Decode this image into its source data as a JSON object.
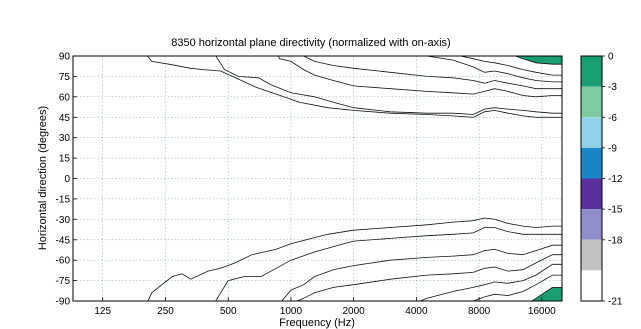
{
  "chart_data": {
    "type": "heatmap",
    "subtype": "filled-contour",
    "title": "8350 horizontal plane directivity (normalized with on-axis)",
    "xlabel": "Frequency (Hz)",
    "ylabel": "Horizontal direction (degrees)",
    "x_scale": "log",
    "xlim": [
      90,
      20000
    ],
    "ylim": [
      -90,
      90
    ],
    "x_ticks": [
      {
        "value": 125,
        "label": "125"
      },
      {
        "value": 250,
        "label": "250"
      },
      {
        "value": 500,
        "label": "500"
      },
      {
        "value": 1000,
        "label": "1000"
      },
      {
        "value": 2000,
        "label": "2000"
      },
      {
        "value": 4000,
        "label": "4000"
      },
      {
        "value": 8000,
        "label": "8000"
      },
      {
        "value": 16000,
        "label": "16000"
      }
    ],
    "y_ticks": [
      {
        "value": 90,
        "label": "90"
      },
      {
        "value": 75,
        "label": "75"
      },
      {
        "value": 60,
        "label": "60"
      },
      {
        "value": 45,
        "label": "45"
      },
      {
        "value": 30,
        "label": "30"
      },
      {
        "value": 15,
        "label": "15"
      },
      {
        "value": 0,
        "label": "0"
      },
      {
        "value": -15,
        "label": "-15"
      },
      {
        "value": -30,
        "label": "-30"
      },
      {
        "value": -45,
        "label": "-45"
      },
      {
        "value": -60,
        "label": "-60"
      },
      {
        "value": -75,
        "label": "-75"
      },
      {
        "value": -90,
        "label": "-90"
      }
    ],
    "grid": true,
    "colorbar": {
      "placement": "right",
      "levels": [
        {
          "label": "0",
          "value": 0
        },
        {
          "label": "-3",
          "value": -3
        },
        {
          "label": "-6",
          "value": -6
        },
        {
          "label": "-9",
          "value": -9
        },
        {
          "label": "-12",
          "value": -12
        },
        {
          "label": "-15",
          "value": -15
        },
        {
          "label": "-18",
          "value": -18
        },
        {
          "label": "-21",
          "value": -21
        }
      ],
      "bands": [
        {
          "range": [
            -3,
            0
          ],
          "color": "#1a9e74"
        },
        {
          "range": [
            -6,
            -3
          ],
          "color": "#7dcba0"
        },
        {
          "range": [
            -9,
            -6
          ],
          "color": "#8fd2ea"
        },
        {
          "range": [
            -12,
            -9
          ],
          "color": "#1a86c8"
        },
        {
          "range": [
            -15,
            -12
          ],
          "color": "#5a2f9e"
        },
        {
          "range": [
            -18,
            -15
          ],
          "color": "#8e8ec8"
        },
        {
          "range": [
            -21,
            -18
          ],
          "color": "#c2c2c2"
        },
        {
          "range": [
            -24,
            -21
          ],
          "color": "#ffffff"
        }
      ]
    },
    "contours": [
      {
        "level": -3,
        "upper": [
          [
            90,
            94
          ],
          [
            195,
            94
          ],
          [
            215,
            86
          ],
          [
            260,
            84
          ],
          [
            330,
            81
          ],
          [
            380,
            80
          ],
          [
            460,
            79
          ],
          [
            560,
            73
          ],
          [
            680,
            67
          ],
          [
            850,
            62
          ],
          [
            1100,
            56
          ],
          [
            1500,
            52
          ],
          [
            2000,
            50
          ],
          [
            3000,
            48
          ],
          [
            4500,
            47
          ],
          [
            6000,
            46
          ],
          [
            7500,
            45
          ],
          [
            8500,
            49
          ],
          [
            9500,
            50
          ],
          [
            11000,
            48
          ],
          [
            13000,
            46
          ],
          [
            15000,
            45
          ],
          [
            18000,
            45
          ],
          [
            20000,
            45
          ]
        ],
        "lower": [
          [
            90,
            -94
          ],
          [
            200,
            -94
          ],
          [
            215,
            -84
          ],
          [
            240,
            -78
          ],
          [
            270,
            -72
          ],
          [
            300,
            -70
          ],
          [
            330,
            -74
          ],
          [
            400,
            -68
          ],
          [
            460,
            -66
          ],
          [
            540,
            -62
          ],
          [
            650,
            -56
          ],
          [
            850,
            -52
          ],
          [
            1000,
            -48
          ],
          [
            1500,
            -41
          ],
          [
            2000,
            -38
          ],
          [
            3000,
            -36
          ],
          [
            4500,
            -34
          ],
          [
            6000,
            -32
          ],
          [
            7500,
            -31
          ],
          [
            8500,
            -29
          ],
          [
            9500,
            -30
          ],
          [
            11000,
            -33
          ],
          [
            13000,
            -35
          ],
          [
            15000,
            -36
          ],
          [
            18000,
            -35
          ],
          [
            20000,
            -35
          ]
        ]
      },
      {
        "level": -6,
        "upper": [
          [
            90,
            94
          ],
          [
            420,
            94
          ],
          [
            480,
            80
          ],
          [
            560,
            75
          ],
          [
            700,
            74
          ],
          [
            800,
            69
          ],
          [
            1000,
            63
          ],
          [
            1300,
            60
          ],
          [
            1600,
            56
          ],
          [
            2000,
            52
          ],
          [
            3000,
            49
          ],
          [
            4500,
            48
          ],
          [
            6000,
            48
          ],
          [
            7500,
            47
          ],
          [
            8500,
            51
          ],
          [
            9500,
            52
          ],
          [
            11000,
            51
          ],
          [
            13000,
            50
          ],
          [
            15000,
            49
          ],
          [
            18000,
            48
          ],
          [
            20000,
            48
          ]
        ],
        "lower": [
          [
            90,
            -94
          ],
          [
            420,
            -94
          ],
          [
            500,
            -75
          ],
          [
            600,
            -72
          ],
          [
            720,
            -72
          ],
          [
            850,
            -66
          ],
          [
            1000,
            -60
          ],
          [
            1300,
            -54
          ],
          [
            1600,
            -50
          ],
          [
            2000,
            -46
          ],
          [
            3000,
            -44
          ],
          [
            4500,
            -42
          ],
          [
            6000,
            -41
          ],
          [
            7500,
            -40
          ],
          [
            8500,
            -36
          ],
          [
            9500,
            -36
          ],
          [
            11000,
            -39
          ],
          [
            13000,
            -41
          ],
          [
            15000,
            -41
          ],
          [
            18000,
            -41
          ],
          [
            20000,
            -41
          ]
        ]
      },
      {
        "level": -9,
        "upper": [
          [
            90,
            94
          ],
          [
            860,
            94
          ],
          [
            880,
            88
          ],
          [
            1000,
            86
          ],
          [
            1150,
            80
          ],
          [
            1300,
            76
          ],
          [
            1600,
            72
          ],
          [
            2000,
            68
          ],
          [
            3000,
            66
          ],
          [
            4500,
            64
          ],
          [
            6000,
            63
          ],
          [
            7500,
            62
          ],
          [
            8500,
            64
          ],
          [
            9500,
            66
          ],
          [
            11000,
            64
          ],
          [
            13000,
            61
          ],
          [
            15000,
            60
          ],
          [
            18000,
            61
          ],
          [
            20000,
            61
          ]
        ],
        "lower": [
          [
            90,
            -94
          ],
          [
            860,
            -94
          ],
          [
            1000,
            -82
          ],
          [
            1150,
            -78
          ],
          [
            1300,
            -72
          ],
          [
            1600,
            -67
          ],
          [
            2000,
            -64
          ],
          [
            3000,
            -60
          ],
          [
            4500,
            -58
          ],
          [
            6000,
            -57
          ],
          [
            7500,
            -56
          ],
          [
            8500,
            -53
          ],
          [
            9500,
            -52
          ],
          [
            11000,
            -55
          ],
          [
            13000,
            -56
          ],
          [
            15000,
            -53
          ],
          [
            18000,
            -49
          ],
          [
            20000,
            -49
          ]
        ]
      },
      {
        "level": -12,
        "upper": [
          [
            90,
            94
          ],
          [
            860,
            94
          ],
          [
            1000,
            94
          ],
          [
            1150,
            90
          ],
          [
            1300,
            86
          ],
          [
            1600,
            83
          ],
          [
            2000,
            81
          ],
          [
            3000,
            78
          ],
          [
            4500,
            75
          ],
          [
            6000,
            74
          ],
          [
            7500,
            72
          ],
          [
            8500,
            70
          ],
          [
            9500,
            72
          ],
          [
            11000,
            70
          ],
          [
            13000,
            68
          ],
          [
            15000,
            66
          ],
          [
            18000,
            66
          ],
          [
            20000,
            66
          ]
        ],
        "lower": [
          [
            90,
            -94
          ],
          [
            980,
            -94
          ],
          [
            1000,
            -92
          ],
          [
            1150,
            -88
          ],
          [
            1300,
            -84
          ],
          [
            1600,
            -80
          ],
          [
            2000,
            -78
          ],
          [
            3000,
            -74
          ],
          [
            4500,
            -71
          ],
          [
            6000,
            -70
          ],
          [
            7500,
            -69
          ],
          [
            8500,
            -66
          ],
          [
            9500,
            -65
          ],
          [
            11000,
            -68
          ],
          [
            13000,
            -67
          ],
          [
            15000,
            -62
          ],
          [
            18000,
            -56
          ],
          [
            20000,
            -56
          ]
        ]
      },
      {
        "level": -15,
        "upper": [
          [
            90,
            94
          ],
          [
            3000,
            94
          ],
          [
            3800,
            92
          ],
          [
            4500,
            90
          ],
          [
            6000,
            87
          ],
          [
            7500,
            82
          ],
          [
            8500,
            78
          ],
          [
            9500,
            79
          ],
          [
            11000,
            77
          ],
          [
            13000,
            74
          ],
          [
            15000,
            72
          ],
          [
            18000,
            71
          ],
          [
            20000,
            71
          ]
        ],
        "lower": [
          [
            90,
            -94
          ],
          [
            3600,
            -94
          ],
          [
            4500,
            -88
          ],
          [
            6000,
            -83
          ],
          [
            7500,
            -80
          ],
          [
            8500,
            -78
          ],
          [
            9500,
            -76
          ],
          [
            11000,
            -77
          ],
          [
            13000,
            -75
          ],
          [
            15000,
            -71
          ],
          [
            18000,
            -63
          ],
          [
            20000,
            -63
          ]
        ]
      },
      {
        "level": -18,
        "upper": [
          [
            90,
            94
          ],
          [
            5500,
            94
          ],
          [
            6500,
            90
          ],
          [
            7500,
            88
          ],
          [
            8500,
            86
          ],
          [
            9500,
            85
          ],
          [
            11000,
            83
          ],
          [
            13000,
            80
          ],
          [
            15000,
            78
          ],
          [
            18000,
            76
          ],
          [
            20000,
            76
          ]
        ],
        "lower": [
          [
            90,
            -94
          ],
          [
            6500,
            -94
          ],
          [
            7500,
            -90
          ],
          [
            8500,
            -87
          ],
          [
            9500,
            -85
          ],
          [
            11000,
            -86
          ],
          [
            13000,
            -83
          ],
          [
            15000,
            -78
          ],
          [
            18000,
            -71
          ],
          [
            20000,
            -71
          ]
        ]
      },
      {
        "level": -21,
        "upper": [
          [
            90,
            94
          ],
          [
            10500,
            94
          ],
          [
            11000,
            92
          ],
          [
            13000,
            88
          ],
          [
            15000,
            85
          ],
          [
            18000,
            84
          ],
          [
            20000,
            84
          ]
        ],
        "lower": [
          [
            90,
            -94
          ],
          [
            13000,
            -94
          ],
          [
            15000,
            -88
          ],
          [
            18000,
            -80
          ],
          [
            20000,
            -80
          ]
        ]
      }
    ]
  }
}
